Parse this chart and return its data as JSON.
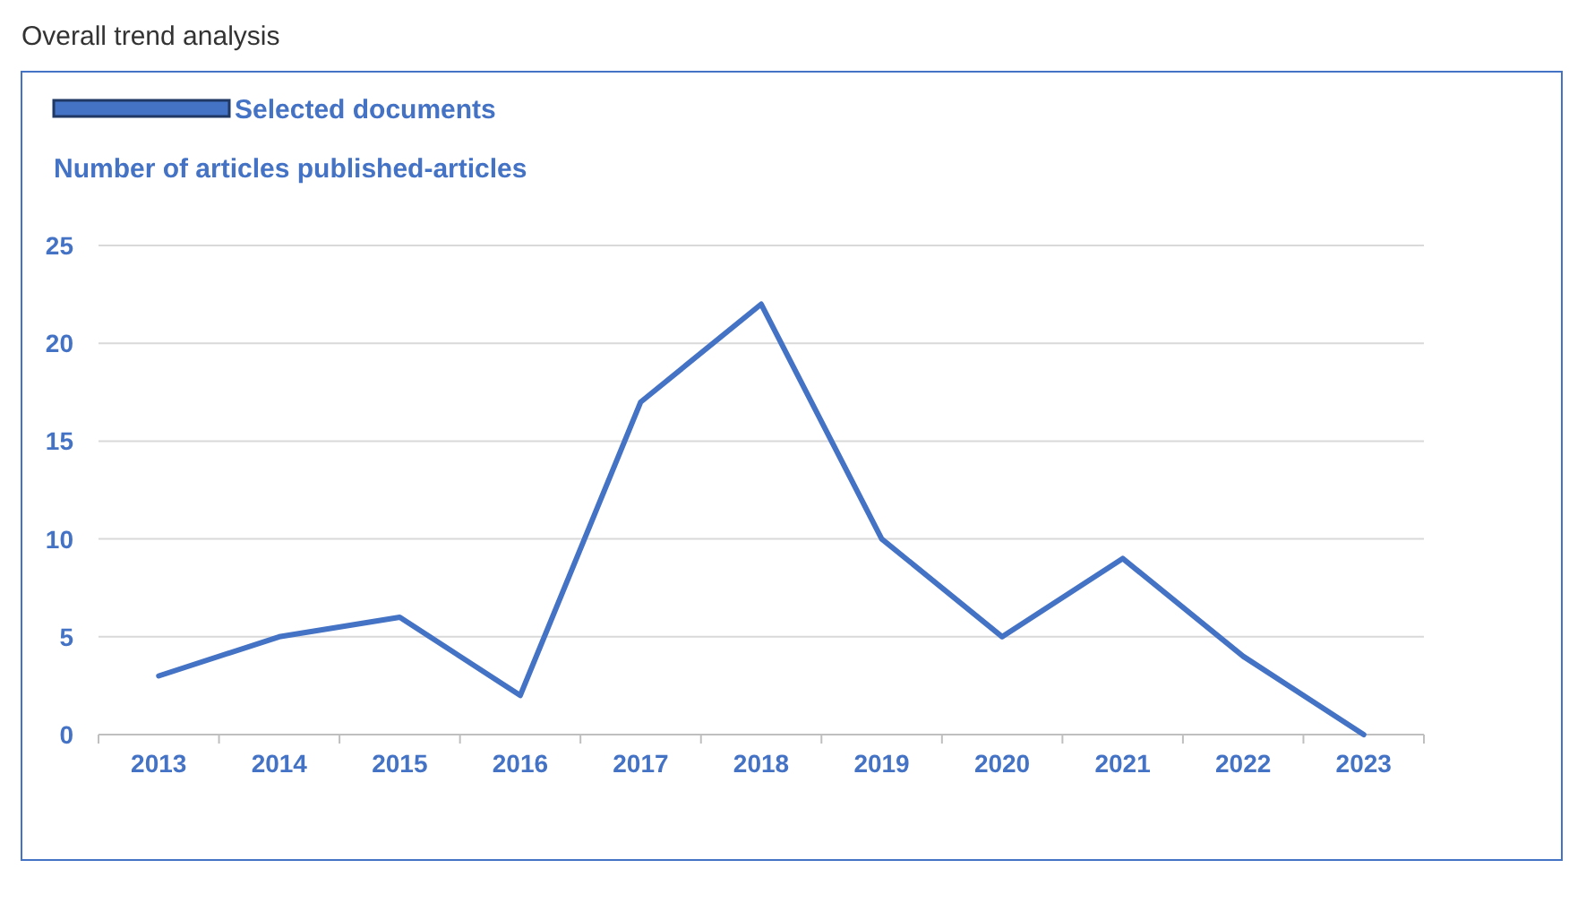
{
  "chart_data": {
    "type": "line",
    "title": "Overall trend analysis",
    "subtitle": "Number of articles published-articles",
    "categories": [
      "2013",
      "2014",
      "2015",
      "2016",
      "2017",
      "2018",
      "2019",
      "2020",
      "2021",
      "2022",
      "2023"
    ],
    "series": [
      {
        "name": "Selected documents",
        "color": "#4472c4",
        "values": [
          3,
          5,
          6,
          2,
          17,
          22,
          10,
          5,
          9,
          4,
          0
        ]
      }
    ],
    "ylim": [
      0,
      25
    ],
    "yticks": [
      0,
      5,
      10,
      15,
      20,
      25
    ],
    "grid": "y",
    "legend": "top left",
    "marker": "none",
    "line_style": "solid"
  }
}
